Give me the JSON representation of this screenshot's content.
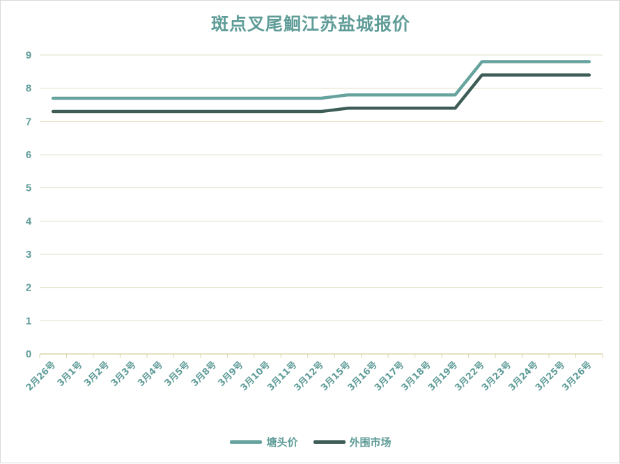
{
  "chart_data": {
    "type": "line",
    "title": "斑点叉尾鮰江苏盐城报价",
    "xlabel": "",
    "ylabel": "",
    "ylim": [
      0,
      9
    ],
    "yticks": [
      0,
      1,
      2,
      3,
      4,
      5,
      6,
      7,
      8,
      9
    ],
    "categories": [
      "2月26号",
      "3月1号",
      "3月2号",
      "3月3号",
      "3月4号",
      "3月5号",
      "3月8号",
      "3月9号",
      "3月10号",
      "3月11号",
      "3月12号",
      "3月15号",
      "3月16号",
      "3月17号",
      "3月18号",
      "3月19号",
      "3月22号",
      "3月23号",
      "3月24号",
      "3月25号",
      "3月26号"
    ],
    "grid": "horizontal",
    "legend_position": "bottom",
    "series": [
      {
        "name": "塘头价",
        "color": "#66a39e",
        "values": [
          7.7,
          7.7,
          7.7,
          7.7,
          7.7,
          7.7,
          7.7,
          7.7,
          7.7,
          7.7,
          7.7,
          7.8,
          7.8,
          7.8,
          7.8,
          7.8,
          8.8,
          8.8,
          8.8,
          8.8,
          8.8
        ]
      },
      {
        "name": "外围市场",
        "color": "#3e5d57",
        "values": [
          7.3,
          7.3,
          7.3,
          7.3,
          7.3,
          7.3,
          7.3,
          7.3,
          7.3,
          7.3,
          7.3,
          7.4,
          7.4,
          7.4,
          7.4,
          7.4,
          8.4,
          8.4,
          8.4,
          8.4,
          8.4
        ]
      }
    ]
  },
  "colors": {
    "text": "#5f9c98",
    "grid": "#e3e0c8",
    "axis": "#dcd6a8"
  }
}
